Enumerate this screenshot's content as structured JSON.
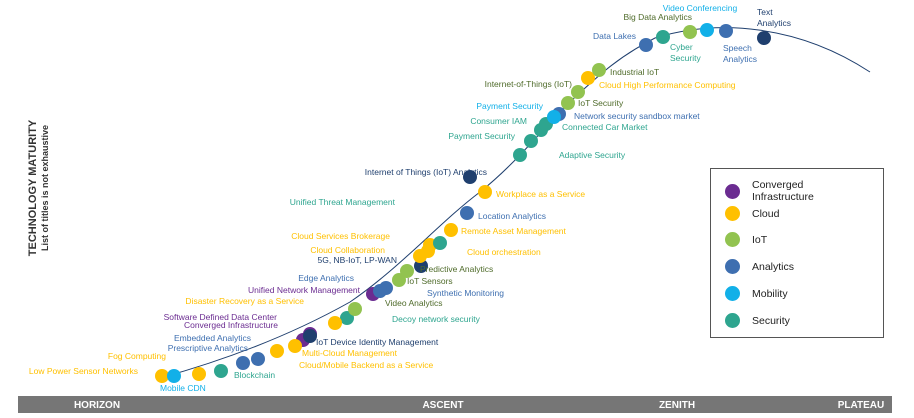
{
  "axis": {
    "title": "TECHNOLOGY MATURITY",
    "subtitle": "List of titles is not exhaustive"
  },
  "phases": [
    "HORIZON",
    "ASCENT",
    "ZENITH",
    "PLATEAU"
  ],
  "colors": {
    "converged": "#6B2C91",
    "cloud": "#FFC000",
    "iot": "#92C350",
    "analytics": "#3E6FB0",
    "mobility": "#12B0E8",
    "security": "#2EA58F",
    "dark": "#1F3F6E"
  },
  "legend": [
    {
      "key": "converged",
      "label": "Converged\nInfrastructure"
    },
    {
      "key": "cloud",
      "label": "Cloud"
    },
    {
      "key": "iot",
      "label": "IoT"
    },
    {
      "key": "analytics",
      "label": "Analytics"
    },
    {
      "key": "mobility",
      "label": "Mobility"
    },
    {
      "key": "security",
      "label": "Security"
    }
  ],
  "technologies": [
    {
      "label": "Low Power Sensor Networks",
      "cat": "cloud"
    },
    {
      "label": "Mobile CDN",
      "cat": "mobility"
    },
    {
      "label": "Fog Computing",
      "cat": "cloud"
    },
    {
      "label": "Blockchain",
      "cat": "security"
    },
    {
      "label": "Prescriptive Analytics",
      "cat": "analytics"
    },
    {
      "label": "Embedded Analytics",
      "cat": "analytics"
    },
    {
      "label": "Cloud/Mobile Backend as a Service",
      "cat": "cloud"
    },
    {
      "label": "Converged Infrastructure",
      "cat": "converged"
    },
    {
      "label": "Software Defined Data Center",
      "cat": "converged"
    },
    {
      "label": "Multi-Cloud Management",
      "cat": "cloud"
    },
    {
      "label": "IoT Device Identity Management",
      "cat": "dark"
    },
    {
      "label": "Decoy network security",
      "cat": "security"
    },
    {
      "label": "Disaster Recovery as a Service",
      "cat": "cloud"
    },
    {
      "label": "Unified Network Management",
      "cat": "converged"
    },
    {
      "label": "Video Analytics",
      "cat": "iot"
    },
    {
      "label": "Edge Analytics",
      "cat": "analytics"
    },
    {
      "label": "Synthetic Monitoring",
      "cat": "analytics"
    },
    {
      "label": "IoT Sensors",
      "cat": "iot"
    },
    {
      "label": "5G, NB-IoT, LP-WAN",
      "cat": "dark"
    },
    {
      "label": "Predictive Analytics",
      "cat": "iot"
    },
    {
      "label": "Cloud Collaboration",
      "cat": "cloud"
    },
    {
      "label": "Cloud orchestration",
      "cat": "cloud"
    },
    {
      "label": "Cloud Services Brokerage",
      "cat": "cloud"
    },
    {
      "label": "Remote Asset Management",
      "cat": "cloud"
    },
    {
      "label": "Unified Threat Management",
      "cat": "security"
    },
    {
      "label": "Location Analytics",
      "cat": "analytics"
    },
    {
      "label": "Workplace as a Service",
      "cat": "cloud"
    },
    {
      "label": "Internet of Things (IoT) Analytics",
      "cat": "dark"
    },
    {
      "label": "Adaptive Security",
      "cat": "security"
    },
    {
      "label": "Payment Security",
      "cat": "security"
    },
    {
      "label": "Connected Car Market",
      "cat": "security"
    },
    {
      "label": "Consumer IAM",
      "cat": "security"
    },
    {
      "label": "Network security sandbox market",
      "cat": "analytics"
    },
    {
      "label": "Payment Security",
      "cat": "mobility"
    },
    {
      "label": "IoT Security",
      "cat": "iot"
    },
    {
      "label": "Internet-of-Things (IoT)",
      "cat": "iot"
    },
    {
      "label": "Cloud High Performance Computing",
      "cat": "cloud"
    },
    {
      "label": "Industrial IoT",
      "cat": "iot"
    },
    {
      "label": "Data Lakes",
      "cat": "analytics"
    },
    {
      "label": "Cyber Security",
      "cat": "security"
    },
    {
      "label": "Big Data Analytics",
      "cat": "iot"
    },
    {
      "label": "Video Conferencing",
      "cat": "mobility"
    },
    {
      "label": "Speech Analytics",
      "cat": "analytics"
    },
    {
      "label": "Text Analytics",
      "cat": "dark"
    }
  ]
}
